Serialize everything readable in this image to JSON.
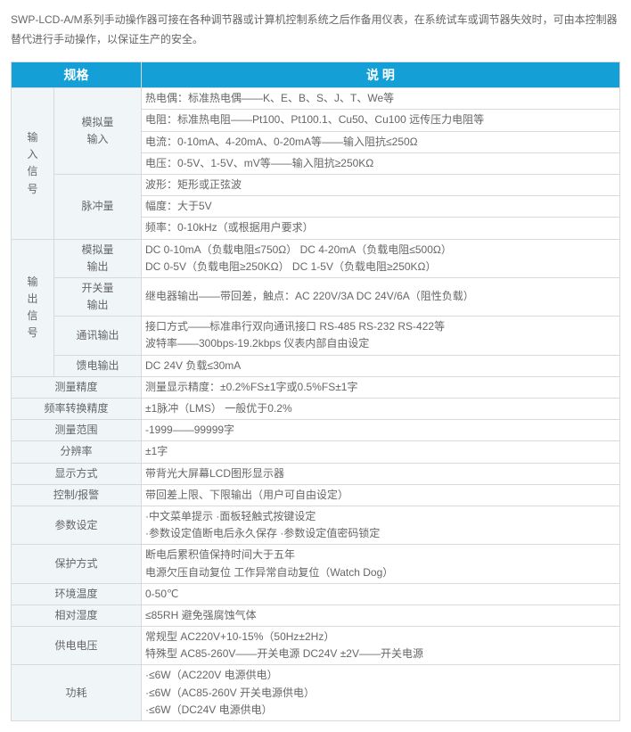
{
  "intro": "SWP-LCD-A/M系列手动操作器可接在各种调节器或计算机控制系统之后作备用仪表，在系统试车或调节器失效时，可由本控制器替代进行手动操作，以保证生产的安全。",
  "header": {
    "spec": "规格",
    "desc": "说   明"
  },
  "colwidths": {
    "c1": "48px",
    "c2": "98px",
    "c3": "auto"
  },
  "rows": {
    "in_group": "输入信号",
    "in_analog": "模拟量输入",
    "in_analog_r1": "热电偶：标准热电偶——K、E、B、S、J、T、We等",
    "in_analog_r2": "电阻：标准热电阻——Pt100、Pt100.1、Cu50、Cu100 远传压力电阻等",
    "in_analog_r3": "电流：0-10mA、4-20mA、0-20mA等——输入阻抗≤250Ω",
    "in_analog_r4": "电压：0-5V、1-5V、mV等——输入阻抗≥250KΩ",
    "in_pulse": "脉冲量",
    "in_pulse_r1": "波形：矩形或正弦波",
    "in_pulse_r2": "幅度：大于5V",
    "in_pulse_r3": "频率：0-10kHz（或根据用户要求）",
    "out_group": "输出信号",
    "out_analog": "模拟量输出",
    "out_analog_d": "DC 0-10mA（负载电阻≤750Ω） DC 4-20mA（负载电阻≤500Ω）\nDC 0-5V（负载电阻≥250KΩ） DC 1-5V（负载电阻≥250KΩ）",
    "out_switch": "开关量输出",
    "out_switch_d": "继电器输出——带回差，触点：AC 220V/3A DC 24V/6A（阻性负载）",
    "out_comm": "通讯输出",
    "out_comm_d": "接口方式——标准串行双向通讯接口 RS-485 RS-232 RS-422等\n波特率——300bps-19.2kbps 仪表内部自由设定",
    "out_feed": "馈电输出",
    "out_feed_d": "DC 24V 负载≤30mA",
    "meas_acc": "测量精度",
    "meas_acc_d": "测量显示精度：±0.2%FS±1字或0.5%FS±1字",
    "freq_acc": "频率转换精度",
    "freq_acc_d": "±1脉冲（LMS） 一般优于0.2%",
    "meas_range": "测量范围",
    "meas_range_d": "-1999——99999字",
    "resolution": "分辨率",
    "resolution_d": "±1字",
    "display": "显示方式",
    "display_d": "带背光大屏幕LCD图形显示器",
    "ctrl_alarm": "控制/报警",
    "ctrl_alarm_d": "带回差上限、下限输出（用户可自由设定）",
    "param": "参数设定",
    "param_d": "·中文菜单提示                 ·面板轻触式按键设定\n·参数设定值断电后永久保存  ·参数设定值密码锁定",
    "protect": "保护方式",
    "protect_d": "断电后累积值保持时间大于五年\n电源欠压自动复位    工作异常自动复位（Watch Dog）",
    "temp": "环境温度",
    "temp_d": "0-50℃",
    "humid": "相对湿度",
    "humid_d": "≤85RH    避免强腐蚀气体",
    "power": "供电电压",
    "power_d": "常规型 AC220V+10-15%（50Hz±2Hz）\n特殊型 AC85-260V——开关电源 DC24V ±2V——开关电源",
    "consume": "功耗",
    "consume_d": "·≤6W（AC220V 电源供电）\n·≤6W（AC85-260V 开关电源供电）\n·≤6W（DC24V 电源供电）"
  }
}
